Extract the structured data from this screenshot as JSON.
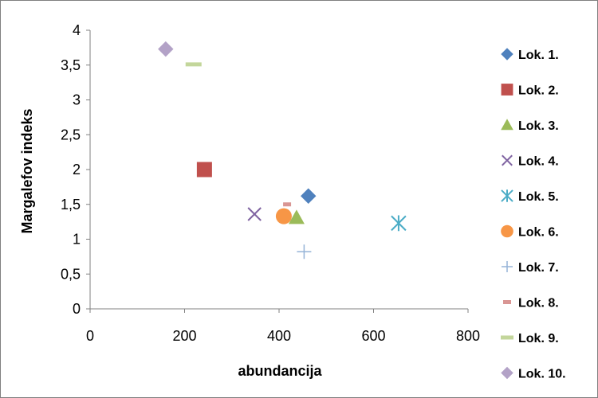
{
  "chart_data": {
    "type": "scatter",
    "xlabel": "abundancija",
    "ylabel": "Margalefov indeks",
    "xlim": [
      0,
      800
    ],
    "ylim": [
      0,
      4
    ],
    "x_ticks": [
      "0",
      "200",
      "400",
      "600",
      "800"
    ],
    "y_ticks": [
      "0",
      "0,5",
      "1",
      "1,5",
      "2",
      "2,5",
      "3",
      "3,5",
      "4"
    ],
    "grid": false,
    "legend_position": "right",
    "series": [
      {
        "name": "Lok. 1.",
        "marker": "diamond",
        "color": "#4F81BD",
        "x": [
          462
        ],
        "y": [
          1.62
        ]
      },
      {
        "name": "Lok. 2.",
        "marker": "square",
        "color": "#C0504D",
        "x": [
          242
        ],
        "y": [
          2.0
        ]
      },
      {
        "name": "Lok. 3.",
        "marker": "triangle",
        "color": "#9BBB59",
        "x": [
          437
        ],
        "y": [
          1.31
        ]
      },
      {
        "name": "Lok. 4.",
        "marker": "x",
        "color": "#8064A2",
        "x": [
          348
        ],
        "y": [
          1.36
        ]
      },
      {
        "name": "Lok. 5.",
        "marker": "star",
        "color": "#4BACC6",
        "x": [
          653
        ],
        "y": [
          1.23
        ]
      },
      {
        "name": "Lok. 6.",
        "marker": "circle",
        "color": "#F79646",
        "x": [
          410
        ],
        "y": [
          1.33
        ]
      },
      {
        "name": "Lok. 7.",
        "marker": "plus",
        "color": "#95B3D7",
        "x": [
          453
        ],
        "y": [
          0.82
        ]
      },
      {
        "name": "Lok. 8.",
        "marker": "dash",
        "color": "#D99694",
        "x": [
          417
        ],
        "y": [
          1.5
        ]
      },
      {
        "name": "Lok. 9.",
        "marker": "bar",
        "color": "#C3D69B",
        "x": [
          219
        ],
        "y": [
          3.51
        ]
      },
      {
        "name": "Lok. 10.",
        "marker": "diamond",
        "color": "#B3A2C7",
        "x": [
          160
        ],
        "y": [
          3.73
        ]
      }
    ]
  }
}
